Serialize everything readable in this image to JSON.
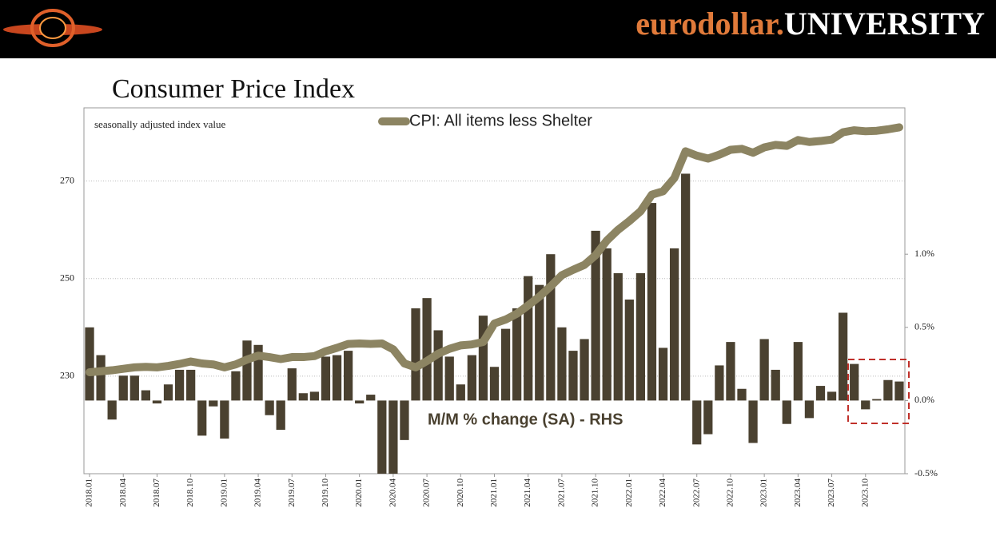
{
  "header": {
    "brand_a": "eurodollar.",
    "brand_b": "UNIVERSITY"
  },
  "chart_data": {
    "type": "bar",
    "title": "Consumer Price Index",
    "ylabel": "seasonally adjusted index value",
    "categories": [
      "2018.01",
      null,
      null,
      "2018.04",
      null,
      null,
      "2018.07",
      null,
      null,
      "2018.10",
      null,
      null,
      "2019.01",
      null,
      null,
      "2019.04",
      null,
      null,
      "2019.07",
      null,
      null,
      "2019.10",
      null,
      null,
      "2020.01",
      null,
      null,
      "2020.04",
      null,
      null,
      "2020.07",
      null,
      null,
      "2020.10",
      null,
      null,
      "2021.01",
      null,
      null,
      "2021.04",
      null,
      null,
      "2021.07",
      null,
      null,
      "2021.10",
      null,
      null,
      "2022.01",
      null,
      null,
      "2022.04",
      null,
      null,
      "2022.07",
      null,
      null,
      "2022.10",
      null,
      null,
      "2023.01",
      null,
      null,
      "2023.04",
      null,
      null,
      "2023.07",
      null,
      null,
      "2023.10",
      null,
      null,
      null
    ],
    "series": [
      {
        "name": "CPI: All items less Shelter",
        "type": "line",
        "color": "#8c8462",
        "values": [
          230.8,
          231.0,
          231.2,
          231.5,
          231.8,
          231.9,
          231.8,
          232.1,
          232.5,
          233.0,
          232.6,
          232.4,
          231.8,
          232.4,
          233.4,
          234.2,
          233.9,
          233.5,
          233.9,
          233.9,
          234.1,
          235.1,
          235.8,
          236.6,
          236.7,
          236.6,
          236.7,
          235.5,
          232.6,
          231.8,
          233.1,
          234.6,
          235.6,
          236.3,
          236.5,
          237.0,
          240.8,
          241.6,
          242.8,
          244.5,
          246.3,
          248.4,
          250.7,
          251.8,
          252.8,
          254.8,
          257.8,
          260.0,
          261.8,
          263.8,
          267.2,
          267.9,
          270.6,
          276.1,
          275.2,
          274.6,
          275.4,
          276.4,
          276.6,
          275.8,
          276.9,
          277.4,
          277.2,
          278.4,
          278.0,
          278.2,
          278.5,
          280.0,
          280.4,
          280.2,
          280.3,
          280.6,
          281.0
        ]
      },
      {
        "name": "M/M % change (SA) - RHS",
        "type": "bar",
        "axis": "y2",
        "color": "#4a4130",
        "values": [
          0.5,
          0.31,
          -0.13,
          0.17,
          0.17,
          0.07,
          -0.02,
          0.11,
          0.21,
          0.21,
          -0.24,
          -0.04,
          -0.26,
          0.2,
          0.41,
          0.38,
          -0.1,
          -0.2,
          0.22,
          0.05,
          0.06,
          0.3,
          0.31,
          0.34,
          -0.02,
          0.04,
          -0.5,
          -0.5,
          -0.27,
          0.63,
          0.7,
          0.48,
          0.3,
          0.11,
          0.31,
          0.58,
          0.23,
          0.49,
          0.63,
          0.85,
          0.79,
          1.0,
          0.5,
          0.34,
          0.42,
          1.16,
          1.04,
          0.87,
          0.69,
          0.87,
          1.35,
          0.36,
          1.04,
          1.55,
          -0.3,
          -0.23,
          0.24,
          0.4,
          0.08,
          -0.29,
          0.42,
          0.21,
          -0.16,
          0.4,
          -0.12,
          0.1,
          0.06,
          0.6,
          0.25,
          -0.06,
          0.01,
          0.14,
          0.13
        ]
      }
    ],
    "ylim": [
      210,
      285
    ],
    "yticks": [
      230,
      250,
      270
    ],
    "y2lim": [
      -0.5,
      2.0
    ],
    "y2ticks": [
      {
        "value": -0.5,
        "label": "-0.5%"
      },
      {
        "value": 0,
        "label": "0.0%"
      },
      {
        "value": 0.5,
        "label": "0.5%"
      },
      {
        "value": 1.0,
        "label": "1.0%"
      }
    ],
    "grid": true
  }
}
